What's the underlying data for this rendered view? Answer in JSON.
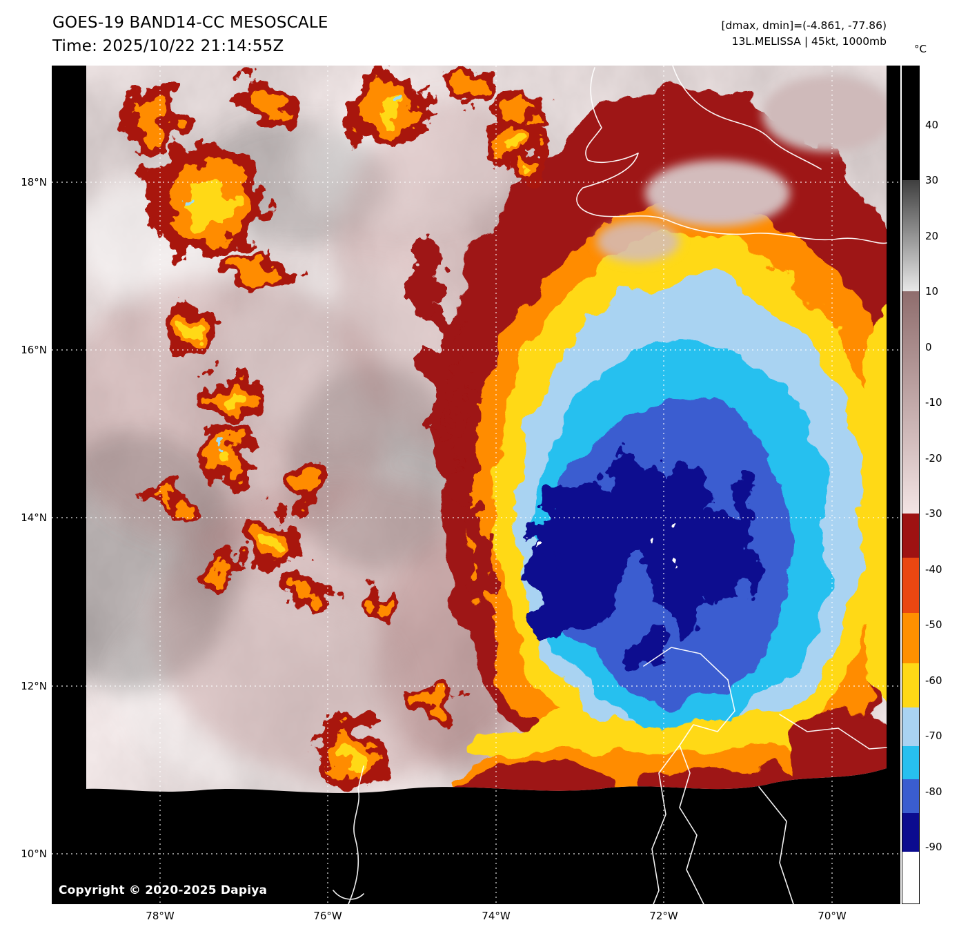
{
  "header": {
    "title": "GOES-19 BAND14-CC MESOSCALE",
    "time": "Time: 2025/10/22 21:14:55Z",
    "dminmax": "[dmax, dmin]=(-4.861, -77.86)",
    "storm": "13L.MELISSA | 45kt, 1000mb"
  },
  "colorbar": {
    "unit_label": "°C",
    "ticks": [
      "40",
      "30",
      "20",
      "10",
      "0",
      "-10",
      "-20",
      "-30",
      "-40",
      "-50",
      "-60",
      "-70",
      "-80",
      "-90"
    ],
    "segments": [
      {
        "colors": [
          "#000000"
        ],
        "pct": 13.6
      },
      {
        "colors": [
          "#3f3f3f",
          "#e8e8e8"
        ],
        "pct": 13.3
      },
      {
        "colors": [
          "#8f6d6d",
          "#f3e4e4"
        ],
        "pct": 26.5
      },
      {
        "colors": [
          "#9e1212"
        ],
        "pct": 5.3
      },
      {
        "colors": [
          "#ea4711"
        ],
        "pct": 6.6
      },
      {
        "colors": [
          "#ff9000"
        ],
        "pct": 6.0
      },
      {
        "colors": [
          "#ffd916"
        ],
        "pct": 5.3
      },
      {
        "colors": [
          "#a9d3f2"
        ],
        "pct": 4.6
      },
      {
        "colors": [
          "#27c0ef"
        ],
        "pct": 4.0
      },
      {
        "colors": [
          "#3a5dd0"
        ],
        "pct": 4.0
      },
      {
        "colors": [
          "#0b0b8f"
        ],
        "pct": 4.6
      },
      {
        "colors": [
          "#ffffff"
        ],
        "pct": 6.2
      }
    ]
  },
  "axes": {
    "lat": [
      "18°N",
      "16°N",
      "14°N",
      "12°N",
      "10°N"
    ],
    "lon": [
      "78°W",
      "76°W",
      "74°W",
      "72°W",
      "70°W"
    ]
  },
  "plot": {
    "copyright": "Copyright © 2020-2025 Dapiya"
  }
}
